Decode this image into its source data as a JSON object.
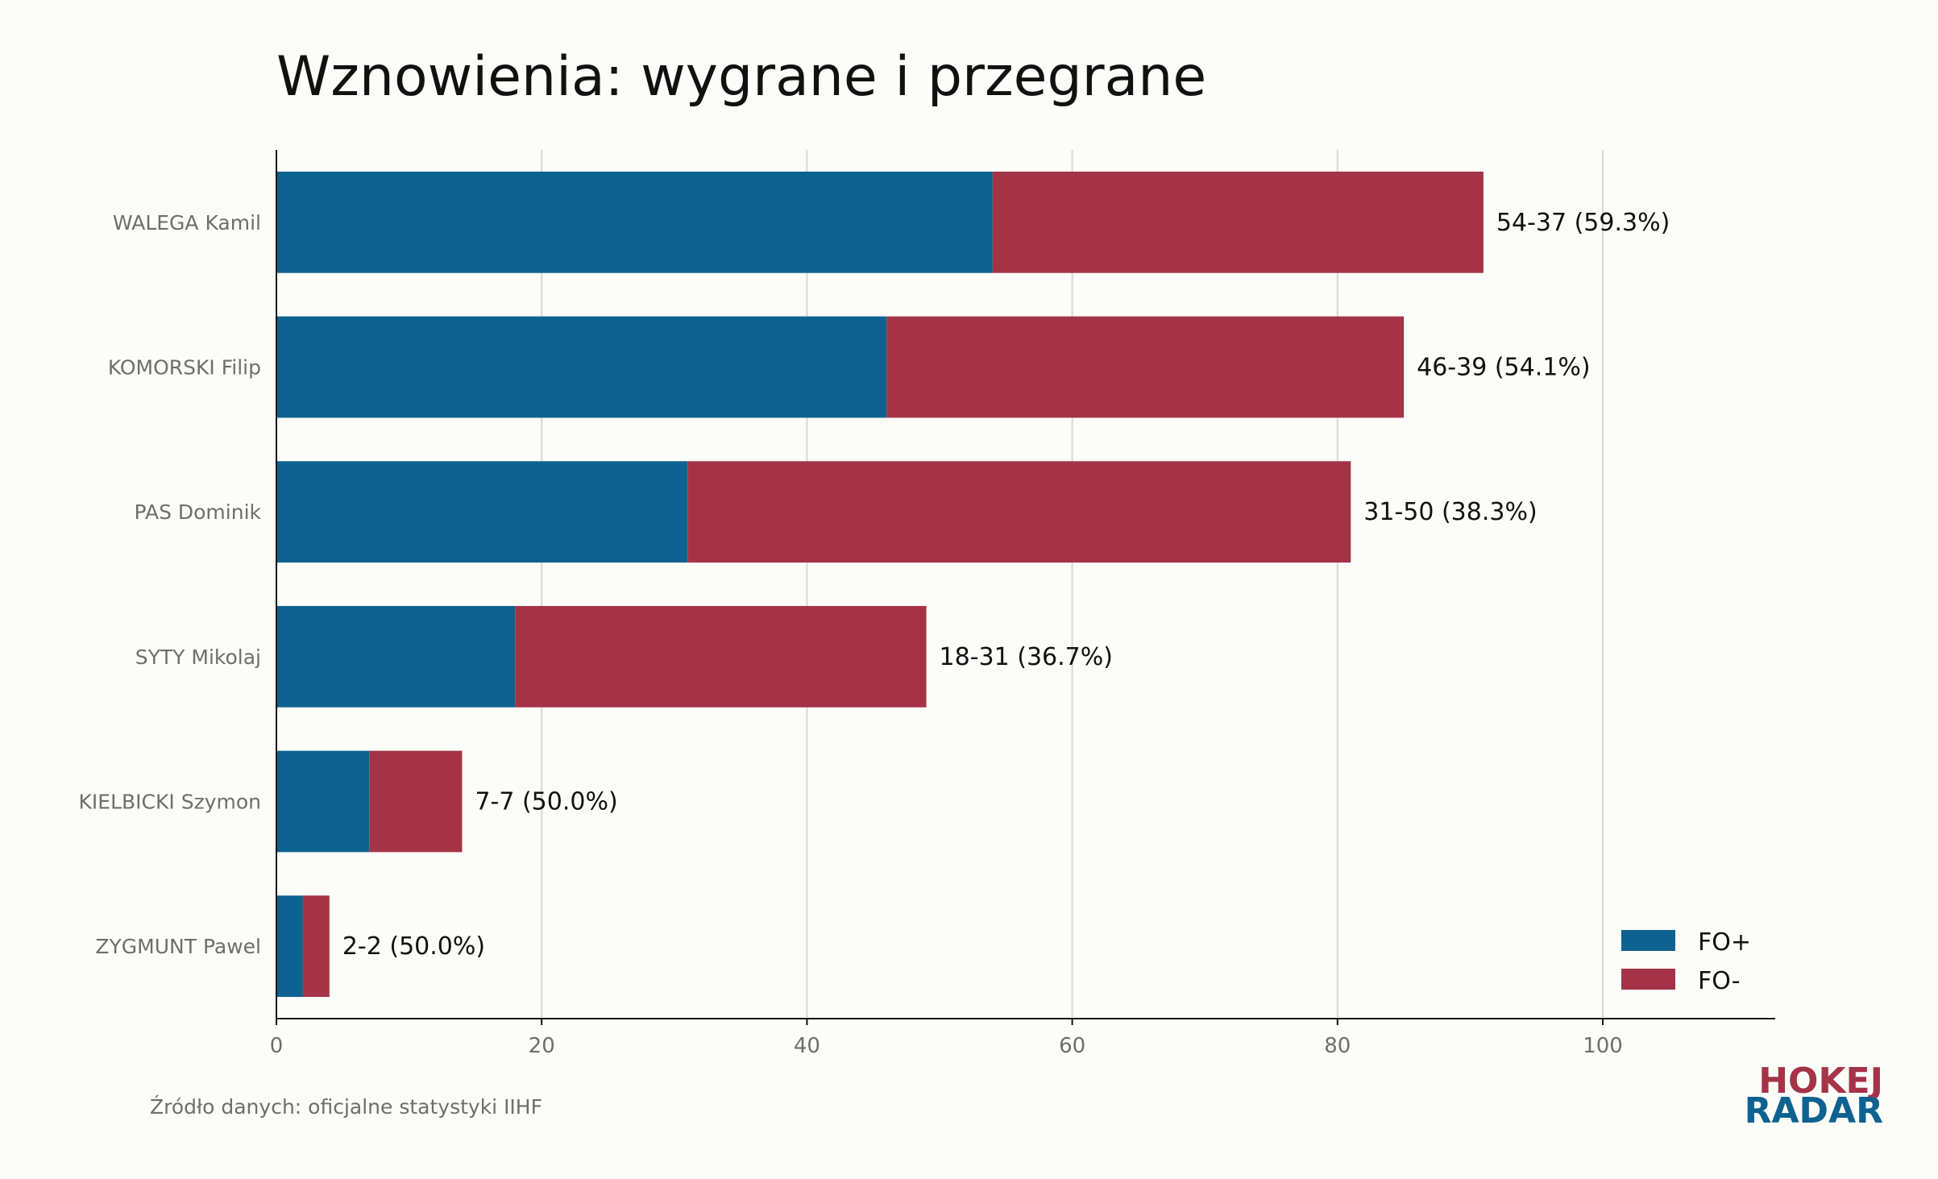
{
  "chart_data": {
    "type": "bar",
    "orientation": "horizontal",
    "stacked": true,
    "title": "Wznowienia: wygrane i przegrane",
    "categories": [
      "WALEGA Kamil",
      "KOMORSKI Filip",
      "PAS Dominik",
      "SYTY Mikolaj",
      "KIELBICKI Szymon",
      "ZYGMUNT Pawel"
    ],
    "series": [
      {
        "name": "FO+",
        "values": [
          54,
          46,
          31,
          18,
          7,
          2
        ]
      },
      {
        "name": "FO-",
        "values": [
          37,
          39,
          50,
          31,
          7,
          2
        ]
      }
    ],
    "data_labels": [
      "54-37 (59.3%)",
      "46-39 (54.1%)",
      "31-50 (38.3%)",
      "18-31 (36.7%)",
      "7-7 (50.0%)",
      "2-2 (50.0%)"
    ],
    "xlim": [
      0,
      113
    ],
    "x_ticks": [
      0,
      20,
      40,
      60,
      80,
      100
    ],
    "grid": true,
    "legend": "bottom-right",
    "colors": {
      "fo_plus": "#0e6290",
      "fo_minus": "#a53347"
    }
  },
  "source": "Źródło danych: oficjalne statystyki IIHF",
  "logo": {
    "line1": "HOKEJ",
    "line2": "RADAR"
  }
}
